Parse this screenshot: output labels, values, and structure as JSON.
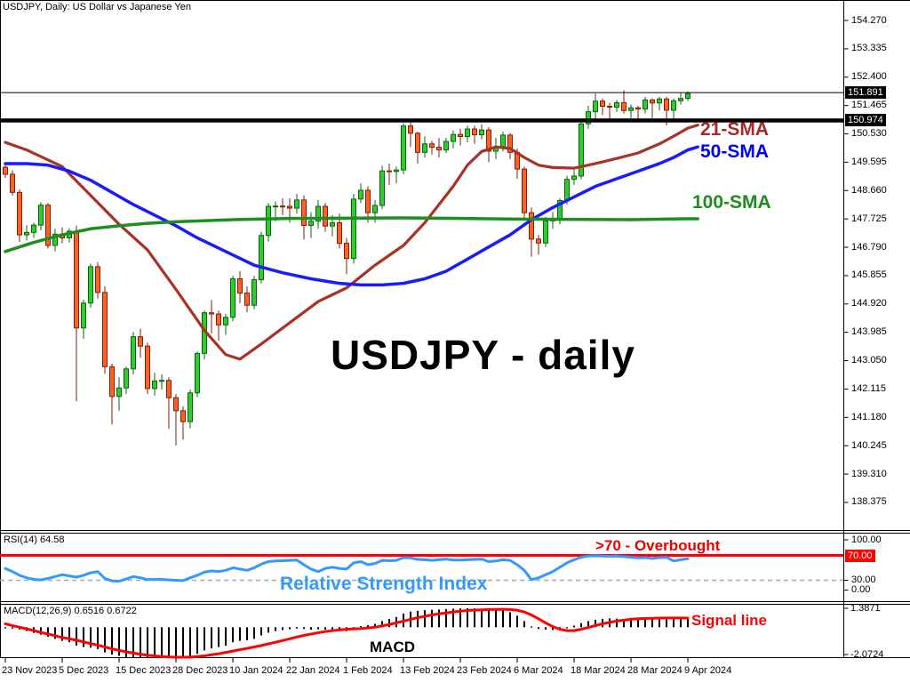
{
  "window": {
    "title": "USDJPY, Daily:  US Dollar vs Japanese Yen"
  },
  "watermark": "USDJPY - daily",
  "colors": {
    "up_fill": "#2FCC2F",
    "up_border": "#0A660A",
    "down_fill": "#FF6126",
    "down_border": "#7E1F04",
    "sma21": "#A93226",
    "sma50": "#1A1AFF",
    "sma100": "#1E8E1E",
    "rsi_line": "#3399FF",
    "level_red": "#FF0000",
    "signal": "#FF0000",
    "histogram": "#000000",
    "dashed_gray": "#AAAAAA",
    "frame": "#000000"
  },
  "overlays": {
    "sma21_label": "21-SMA",
    "sma50_label": "50-SMA",
    "sma100_label": "100-SMA",
    "overbought_label": ">70 - Overbought",
    "rsi_title": "RSI(14) 64.58",
    "rsi_name_label": "Relative Strength Index",
    "macd_title": "MACD(12,26,9) 0.6516 0.6722",
    "signal_label": "Signal line",
    "macd_name_label": "MACD"
  },
  "price_axis": {
    "labels": [
      "154.270",
      "153.335",
      "152.400",
      "151.465",
      "150.530",
      "149.595",
      "148.660",
      "147.725",
      "146.790",
      "145.855",
      "144.920",
      "143.985",
      "143.050",
      "142.115",
      "141.180",
      "140.245",
      "139.310",
      "138.375"
    ],
    "bid_box": "151.891",
    "line_box": "150.974"
  },
  "rsi_axis": [
    "100.00",
    "70.00",
    "30.00",
    "0.00"
  ],
  "macd_axis": [
    "1.3871",
    "-2.0724"
  ],
  "x_axis": {
    "labels": [
      {
        "text": "23 Nov 2023",
        "i": 0
      },
      {
        "text": "5 Dec 2023",
        "i": 8
      },
      {
        "text": "15 Dec 2023",
        "i": 16
      },
      {
        "text": "28 Dec 2023",
        "i": 24
      },
      {
        "text": "10 Jan 2024",
        "i": 32
      },
      {
        "text": "22 Jan 2024",
        "i": 40
      },
      {
        "text": "1 Feb 2024",
        "i": 48
      },
      {
        "text": "13 Feb 2024",
        "i": 56
      },
      {
        "text": "23 Feb 2024",
        "i": 64
      },
      {
        "text": "6 Mar 2024",
        "i": 72
      },
      {
        "text": "18 Mar 2024",
        "i": 80
      },
      {
        "text": "28 Mar 2024",
        "i": 88
      },
      {
        "text": "9 Apr 2024",
        "i": 96
      }
    ]
  },
  "chart_data": {
    "type": "candlestick",
    "symbol": "USDJPY",
    "timeframe": "Daily",
    "title": "USDJPY - daily",
    "y_axis_range": [
      138.375,
      154.27
    ],
    "levels": {
      "bid": 151.891,
      "resistance": 150.974
    },
    "candles": [
      [
        149.43,
        149.6,
        149.08,
        149.2
      ],
      [
        149.2,
        149.33,
        148.5,
        148.6
      ],
      [
        148.6,
        148.7,
        146.96,
        147.2
      ],
      [
        147.2,
        147.52,
        147.02,
        147.28
      ],
      [
        147.28,
        147.6,
        147.1,
        147.52
      ],
      [
        147.52,
        148.28,
        147.35,
        148.18
      ],
      [
        148.18,
        148.25,
        146.75,
        146.85
      ],
      [
        146.85,
        147.4,
        146.66,
        147.22
      ],
      [
        147.22,
        147.45,
        146.92,
        147.1
      ],
      [
        147.1,
        147.42,
        146.95,
        147.32
      ],
      [
        147.32,
        147.5,
        141.71,
        144.13
      ],
      [
        144.13,
        145.06,
        143.77,
        144.95
      ],
      [
        144.95,
        146.25,
        144.8,
        146.15
      ],
      [
        146.15,
        146.3,
        145.1,
        145.3
      ],
      [
        145.3,
        145.5,
        142.62,
        142.85
      ],
      [
        142.85,
        142.95,
        140.95,
        141.87
      ],
      [
        141.87,
        142.5,
        141.4,
        142.15
      ],
      [
        142.15,
        142.85,
        141.95,
        142.78
      ],
      [
        142.78,
        144.0,
        142.6,
        143.84
      ],
      [
        143.84,
        144.1,
        143.15,
        143.53
      ],
      [
        143.53,
        143.65,
        141.95,
        142.13
      ],
      [
        142.13,
        142.65,
        141.9,
        142.38
      ],
      [
        142.38,
        142.6,
        142.1,
        142.4
      ],
      [
        142.4,
        142.5,
        140.8,
        141.83
      ],
      [
        141.83,
        141.95,
        140.25,
        141.4
      ],
      [
        141.4,
        141.55,
        140.45,
        141.04
      ],
      [
        141.04,
        142.1,
        140.82,
        141.99
      ],
      [
        141.99,
        143.35,
        141.85,
        143.29
      ],
      [
        143.29,
        144.7,
        143.1,
        144.63
      ],
      [
        144.63,
        145.05,
        143.95,
        144.59
      ],
      [
        144.59,
        144.7,
        143.7,
        144.23
      ],
      [
        144.23,
        144.6,
        143.9,
        144.48
      ],
      [
        144.48,
        145.85,
        144.35,
        145.75
      ],
      [
        145.75,
        146.0,
        144.95,
        145.28
      ],
      [
        145.28,
        145.5,
        144.65,
        144.88
      ],
      [
        144.88,
        145.85,
        144.75,
        145.72
      ],
      [
        145.72,
        147.3,
        145.6,
        147.18
      ],
      [
        147.18,
        148.25,
        146.98,
        148.14
      ],
      [
        148.14,
        148.3,
        147.65,
        148.15
      ],
      [
        148.15,
        148.4,
        147.85,
        148.14
      ],
      [
        148.14,
        148.4,
        147.6,
        148.08
      ],
      [
        148.08,
        148.55,
        147.9,
        148.35
      ],
      [
        148.35,
        148.5,
        147.05,
        147.51
      ],
      [
        147.51,
        147.95,
        147.1,
        147.65
      ],
      [
        147.65,
        148.35,
        147.4,
        148.14
      ],
      [
        148.14,
        148.25,
        147.3,
        147.49
      ],
      [
        147.49,
        147.85,
        147.15,
        147.6
      ],
      [
        147.6,
        147.9,
        146.75,
        146.92
      ],
      [
        146.92,
        147.1,
        145.9,
        146.42
      ],
      [
        146.42,
        148.55,
        146.25,
        148.38
      ],
      [
        148.38,
        148.9,
        148.25,
        148.67
      ],
      [
        148.67,
        148.8,
        147.6,
        147.93
      ],
      [
        147.93,
        148.35,
        147.6,
        148.17
      ],
      [
        148.17,
        149.48,
        148.05,
        149.31
      ],
      [
        149.31,
        149.55,
        148.85,
        149.29
      ],
      [
        149.29,
        149.45,
        148.9,
        149.34
      ],
      [
        149.34,
        150.88,
        149.2,
        150.79
      ],
      [
        150.79,
        150.9,
        150.1,
        150.55
      ],
      [
        150.55,
        150.6,
        149.55,
        149.92
      ],
      [
        149.92,
        150.45,
        149.75,
        150.2
      ],
      [
        150.2,
        150.3,
        149.85,
        150.09
      ],
      [
        150.09,
        150.4,
        149.75,
        150.0
      ],
      [
        150.0,
        150.4,
        149.9,
        150.28
      ],
      [
        150.28,
        150.65,
        150.05,
        150.51
      ],
      [
        150.51,
        150.7,
        150.15,
        150.44
      ],
      [
        150.44,
        150.8,
        150.25,
        150.69
      ],
      [
        150.69,
        150.8,
        150.2,
        150.5
      ],
      [
        150.5,
        150.85,
        150.35,
        150.66
      ],
      [
        150.66,
        150.75,
        149.6,
        149.96
      ],
      [
        149.96,
        150.4,
        149.7,
        150.11
      ],
      [
        150.11,
        150.6,
        149.95,
        150.49
      ],
      [
        150.49,
        150.55,
        149.7,
        149.92
      ],
      [
        149.92,
        150.05,
        149.05,
        149.37
      ],
      [
        149.37,
        149.45,
        147.75,
        147.93
      ],
      [
        147.93,
        148.1,
        146.48,
        147.06
      ],
      [
        147.06,
        147.2,
        146.55,
        146.93
      ],
      [
        146.93,
        147.8,
        146.8,
        147.66
      ],
      [
        147.66,
        147.95,
        147.4,
        147.74
      ],
      [
        147.74,
        148.4,
        147.55,
        148.33
      ],
      [
        148.33,
        149.15,
        148.2,
        149.03
      ],
      [
        149.03,
        149.35,
        148.85,
        149.14
      ],
      [
        149.14,
        150.97,
        149.03,
        150.86
      ],
      [
        150.86,
        151.45,
        150.7,
        151.26
      ],
      [
        151.26,
        151.86,
        150.95,
        151.61
      ],
      [
        151.61,
        151.7,
        151.15,
        151.44
      ],
      [
        151.44,
        151.55,
        151.0,
        151.41
      ],
      [
        151.41,
        151.65,
        151.25,
        151.56
      ],
      [
        151.56,
        151.97,
        151.2,
        151.3
      ],
      [
        151.3,
        151.5,
        151.05,
        151.39
      ],
      [
        151.39,
        151.45,
        150.9,
        151.35
      ],
      [
        151.35,
        151.75,
        151.2,
        151.65
      ],
      [
        151.65,
        151.7,
        151.05,
        151.55
      ],
      [
        151.55,
        151.75,
        151.3,
        151.68
      ],
      [
        151.68,
        151.75,
        150.81,
        151.31
      ],
      [
        151.31,
        151.7,
        150.95,
        151.62
      ],
      [
        151.62,
        151.88,
        151.5,
        151.7
      ],
      [
        151.7,
        151.93,
        151.62,
        151.86
      ]
    ],
    "sma21": [
      [
        0,
        150.25
      ],
      [
        3,
        150.0
      ],
      [
        8,
        149.45
      ],
      [
        12,
        148.5
      ],
      [
        16,
        147.55
      ],
      [
        20,
        146.7
      ],
      [
        24,
        145.4
      ],
      [
        28,
        144.05
      ],
      [
        31,
        143.25
      ],
      [
        33,
        143.1
      ],
      [
        36,
        143.6
      ],
      [
        40,
        144.3
      ],
      [
        44,
        145.0
      ],
      [
        48,
        145.45
      ],
      [
        52,
        146.2
      ],
      [
        56,
        146.85
      ],
      [
        59,
        147.6
      ],
      [
        61,
        148.2
      ],
      [
        63,
        148.8
      ],
      [
        65,
        149.5
      ],
      [
        67,
        149.95
      ],
      [
        69,
        150.1
      ],
      [
        71,
        150.05
      ],
      [
        73,
        149.75
      ],
      [
        75,
        149.5
      ],
      [
        77,
        149.42
      ],
      [
        80,
        149.4
      ],
      [
        83,
        149.55
      ],
      [
        86,
        149.72
      ],
      [
        89,
        149.9
      ],
      [
        92,
        150.2
      ],
      [
        94,
        150.45
      ],
      [
        96,
        150.72
      ],
      [
        97.4,
        150.82
      ]
    ],
    "sma50": [
      [
        0,
        149.55
      ],
      [
        3,
        149.55
      ],
      [
        6,
        149.5
      ],
      [
        9,
        149.3
      ],
      [
        12,
        149.0
      ],
      [
        15,
        148.6
      ],
      [
        18,
        148.2
      ],
      [
        21,
        147.85
      ],
      [
        24,
        147.5
      ],
      [
        27,
        147.1
      ],
      [
        31,
        146.65
      ],
      [
        35,
        146.2
      ],
      [
        39,
        145.95
      ],
      [
        43,
        145.75
      ],
      [
        47,
        145.6
      ],
      [
        50,
        145.55
      ],
      [
        53,
        145.55
      ],
      [
        56,
        145.6
      ],
      [
        59,
        145.75
      ],
      [
        62,
        146.0
      ],
      [
        65,
        146.4
      ],
      [
        68,
        146.8
      ],
      [
        71,
        147.2
      ],
      [
        74,
        147.7
      ],
      [
        77,
        148.1
      ],
      [
        80,
        148.45
      ],
      [
        83,
        148.8
      ],
      [
        86,
        149.05
      ],
      [
        89,
        149.3
      ],
      [
        92,
        149.55
      ],
      [
        94,
        149.75
      ],
      [
        96,
        150.0
      ],
      [
        97.4,
        150.1
      ]
    ],
    "sma100": [
      [
        0,
        146.65
      ],
      [
        4,
        146.95
      ],
      [
        8,
        147.2
      ],
      [
        12,
        147.4
      ],
      [
        16,
        147.5
      ],
      [
        20,
        147.58
      ],
      [
        24,
        147.63
      ],
      [
        32,
        147.7
      ],
      [
        40,
        147.74
      ],
      [
        56,
        147.76
      ],
      [
        72,
        147.72
      ],
      [
        88,
        147.7
      ],
      [
        96,
        147.73
      ],
      [
        97.4,
        147.73
      ]
    ],
    "rsi": {
      "overbought": 70,
      "oversold": 30,
      "current": 64.58,
      "values": [
        49,
        44,
        38,
        34,
        31.5,
        30.5,
        33,
        36,
        39,
        37,
        35,
        38,
        42,
        44,
        33,
        29,
        28.5,
        32,
        36,
        34,
        31,
        31.5,
        31.5,
        30.5,
        30,
        29.5,
        34,
        38,
        43,
        45,
        44,
        46,
        50,
        48,
        46,
        50,
        56,
        60,
        61,
        61.5,
        62,
        62.5,
        55,
        48,
        44,
        49,
        51,
        49,
        48,
        58,
        60,
        55,
        57,
        62,
        61.5,
        62,
        66.5,
        66,
        63.5,
        63,
        62,
        63,
        64,
        62.5,
        62.5,
        63,
        63.5,
        64,
        60,
        61,
        63,
        62,
        55,
        46,
        31,
        34,
        39,
        44,
        51,
        58,
        63,
        67,
        69,
        69.5,
        69,
        68.5,
        69,
        68,
        67,
        66,
        66.5,
        65,
        66.5,
        67,
        61,
        63,
        64.58
      ]
    },
    "macd": {
      "current_macd": 0.6516,
      "current_signal": 0.6722,
      "range": [
        -2.0724,
        1.3871
      ],
      "histogram": [
        -0.04,
        -0.1,
        -0.16,
        -0.28,
        -0.42,
        -0.55,
        -0.7,
        -0.85,
        -1.0,
        -1.1,
        -1.35,
        -1.45,
        -1.5,
        -1.6,
        -1.85,
        -2.0,
        -2.1,
        -2.22,
        -2.26,
        -2.24,
        -2.2,
        -2.12,
        -2.06,
        -2.1,
        -2.16,
        -2.18,
        -2.1,
        -1.95,
        -1.7,
        -1.55,
        -1.45,
        -1.35,
        -1.1,
        -1.0,
        -0.95,
        -0.85,
        -0.6,
        -0.4,
        -0.28,
        -0.2,
        -0.15,
        -0.1,
        -0.12,
        -0.18,
        -0.15,
        -0.18,
        -0.15,
        -0.2,
        -0.28,
        -0.1,
        0.08,
        0.15,
        0.25,
        0.45,
        0.6,
        0.75,
        1.0,
        1.15,
        1.2,
        1.25,
        1.28,
        1.3,
        1.33,
        1.36,
        1.38,
        1.39,
        1.38,
        1.36,
        1.32,
        1.3,
        1.28,
        1.1,
        0.85,
        0.45,
        0.05,
        -0.12,
        -0.18,
        -0.2,
        -0.15,
        -0.05,
        0.12,
        0.3,
        0.45,
        0.55,
        0.62,
        0.65,
        0.63,
        0.6,
        0.58,
        0.55,
        0.58,
        0.62,
        0.65,
        0.66,
        0.68,
        0.7,
        0.65
      ],
      "signal": [
        0.25,
        0.12,
        0.0,
        -0.12,
        -0.25,
        -0.38,
        -0.5,
        -0.62,
        -0.75,
        -0.85,
        -0.95,
        -1.08,
        -1.2,
        -1.32,
        -1.45,
        -1.58,
        -1.7,
        -1.8,
        -1.9,
        -1.98,
        -2.05,
        -2.1,
        -2.15,
        -2.18,
        -2.2,
        -2.2,
        -2.2,
        -2.15,
        -2.1,
        -2.02,
        -1.95,
        -1.85,
        -1.75,
        -1.65,
        -1.55,
        -1.45,
        -1.35,
        -1.22,
        -1.1,
        -0.98,
        -0.85,
        -0.72,
        -0.6,
        -0.5,
        -0.4,
        -0.32,
        -0.25,
        -0.2,
        -0.15,
        -0.12,
        -0.1,
        -0.05,
        0.0,
        0.1,
        0.2,
        0.32,
        0.45,
        0.58,
        0.7,
        0.8,
        0.9,
        0.98,
        1.05,
        1.12,
        1.18,
        1.23,
        1.26,
        1.28,
        1.3,
        1.31,
        1.32,
        1.3,
        1.25,
        1.12,
        0.9,
        0.62,
        0.32,
        0.05,
        -0.15,
        -0.25,
        -0.25,
        -0.15,
        -0.02,
        0.12,
        0.25,
        0.36,
        0.45,
        0.52,
        0.58,
        0.62,
        0.65,
        0.66,
        0.67,
        0.68,
        0.68,
        0.68,
        0.6722
      ]
    }
  }
}
